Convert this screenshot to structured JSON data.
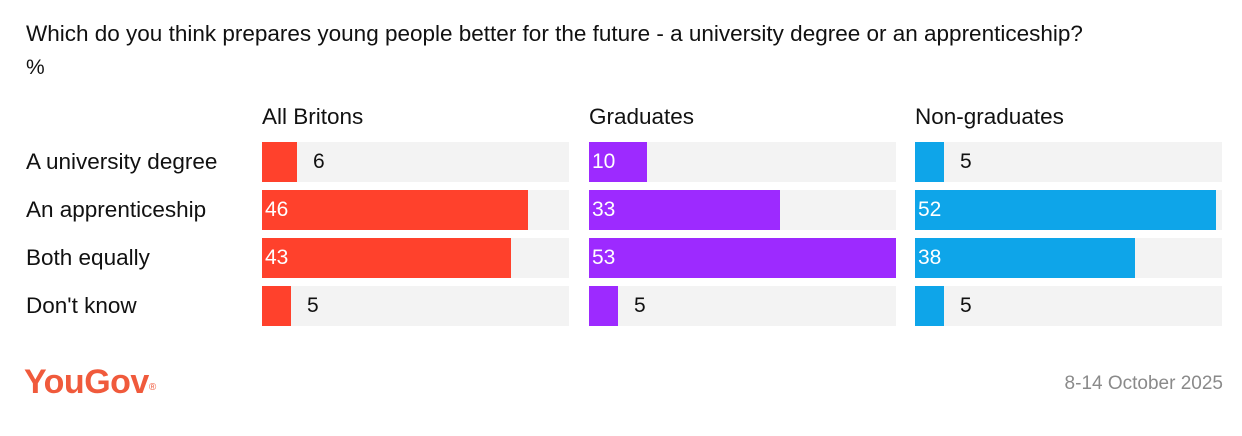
{
  "title": "Which do you think prepares young people better for the future - a university degree or an apprenticeship?",
  "unit": "%",
  "brand": {
    "name": "YouGov",
    "mark": "®",
    "color": "#f05a3c"
  },
  "date": "8-14 October 2025",
  "chart_data": {
    "type": "bar",
    "orientation": "horizontal",
    "categories": [
      "A university degree",
      "An apprenticeship",
      "Both equally",
      "Don't know"
    ],
    "xlim": [
      0,
      53
    ],
    "grid": false,
    "series": [
      {
        "name": "All Britons",
        "color": "#ff412c",
        "values": [
          6,
          46,
          43,
          5
        ]
      },
      {
        "name": "Graduates",
        "color": "#9d2aff",
        "values": [
          10,
          33,
          53,
          5
        ]
      },
      {
        "name": "Non-graduates",
        "color": "#0ea5e9",
        "values": [
          5,
          52,
          38,
          5
        ]
      }
    ]
  }
}
